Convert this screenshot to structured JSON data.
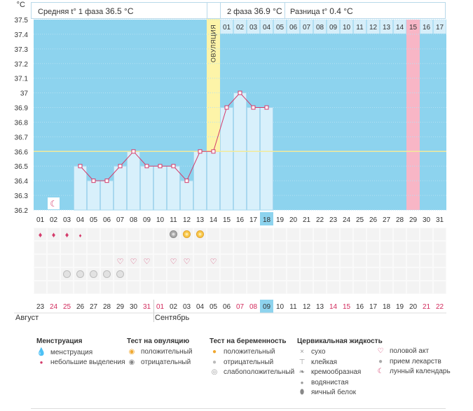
{
  "header": {
    "phase1_label": "Средняя t° 1 фаза",
    "phase1_value": "36.5 °C",
    "phase2_label": "2 фаза",
    "phase2_value": "36.9 °C",
    "diff_label": "Разница t°",
    "diff_value": "0.4 °C",
    "unit": "°C"
  },
  "chart_data": {
    "type": "line",
    "y_unit": "°C",
    "ylim": [
      36.2,
      37.5
    ],
    "y_ticks": [
      "36.2",
      "36.3",
      "36.4",
      "36.5",
      "36.6",
      "36.7",
      "36.8",
      "36.9",
      "37",
      "37.1",
      "37.2",
      "37.3",
      "37.4",
      "37.5"
    ],
    "cycle_days": [
      "01",
      "02",
      "03",
      "04",
      "05",
      "06",
      "07",
      "08",
      "09",
      "10",
      "11",
      "12",
      "13",
      "14",
      "15",
      "16",
      "17",
      "18",
      "19",
      "20",
      "21",
      "22",
      "23",
      "24",
      "25",
      "26",
      "27",
      "28",
      "29",
      "30",
      "31"
    ],
    "temperatures": [
      null,
      null,
      null,
      36.5,
      36.4,
      36.4,
      36.5,
      36.6,
      36.5,
      36.5,
      36.5,
      36.4,
      36.6,
      36.6,
      36.9,
      37.0,
      36.9,
      36.9,
      null,
      null,
      null,
      null,
      null,
      null,
      null,
      null,
      null,
      null,
      null,
      null,
      null
    ],
    "coverline": 36.6,
    "ovulation_day_index": 13,
    "ovulation_label": "ОВУЛЯЦИЯ",
    "luteal_day_labels": [
      "01",
      "02",
      "03",
      "04",
      "05",
      "06",
      "07",
      "08",
      "09",
      "10",
      "11",
      "12",
      "13",
      "14",
      "15",
      "16",
      "17"
    ],
    "expected_period_luteal_index": 14,
    "today_cycle_index": 17,
    "calendar_dates": [
      "23",
      "24",
      "25",
      "26",
      "27",
      "28",
      "29",
      "30",
      "31",
      "01",
      "02",
      "03",
      "04",
      "05",
      "06",
      "07",
      "08",
      "09",
      "10",
      "11",
      "12",
      "13",
      "14",
      "15",
      "16",
      "17",
      "18",
      "19",
      "20",
      "21",
      "22"
    ],
    "calendar_red": [
      false,
      true,
      true,
      false,
      false,
      false,
      false,
      false,
      true,
      true,
      false,
      false,
      false,
      false,
      false,
      true,
      true,
      false,
      false,
      false,
      false,
      false,
      true,
      true,
      false,
      false,
      false,
      false,
      false,
      true,
      true
    ],
    "today_calendar_index": 17,
    "month_labels": [
      {
        "name": "Август",
        "index": 0
      },
      {
        "name": "Сентябрь",
        "index": 9
      }
    ],
    "moon_day_index": 1,
    "menstruation": [
      "heavy",
      "heavy",
      "heavy",
      "light"
    ],
    "ovulation_tests": {
      "10": "negative",
      "11": "positive",
      "12": "positive"
    },
    "sex_days": [
      6,
      7,
      8,
      10,
      11,
      13
    ],
    "medication_days": [
      2,
      3,
      4,
      5,
      6
    ],
    "colors": {
      "plot_bg": "#8dd3ee",
      "bar_fill": "#d8f0fb",
      "bar_stroke": "#a8d8ef",
      "ovulation": "#fdf4a8",
      "expected_period": "#f8b6c6",
      "line": "#d43b6b",
      "coverline": "#f3ea9a",
      "red_date": "#d22a5c",
      "today": "#8dd3ee"
    }
  },
  "legend": {
    "menstruation": {
      "title": "Менструация",
      "items": [
        {
          "icon": "drop-large-icon",
          "label": "менструация"
        },
        {
          "icon": "drop-small-icon",
          "label": "небольшие выделения"
        }
      ]
    },
    "ovulation_test": {
      "title": "Тест на овуляцию",
      "items": [
        {
          "icon": "positive-test-icon",
          "label": "положительный"
        },
        {
          "icon": "negative-test-icon",
          "label": "отрицательный"
        }
      ]
    },
    "pregnancy_test": {
      "title": "Тест на беременность",
      "items": [
        {
          "icon": "pregnancy-positive-icon",
          "label": "положительный"
        },
        {
          "icon": "pregnancy-negative-icon",
          "label": "отрицательный"
        },
        {
          "icon": "pregnancy-weak-icon",
          "label": "слабоположительный"
        }
      ]
    },
    "cervical": {
      "title": "Цервикальная жидкость",
      "items": [
        {
          "icon": "dry-icon",
          "label": "сухо"
        },
        {
          "icon": "sticky-icon",
          "label": "клейкая"
        },
        {
          "icon": "creamy-icon",
          "label": "кремообразная"
        },
        {
          "icon": "watery-icon",
          "label": "водянистая"
        },
        {
          "icon": "egg-white-icon",
          "label": "яичный белок"
        }
      ]
    },
    "other": {
      "items": [
        {
          "icon": "heart-icon",
          "label": "половой акт"
        },
        {
          "icon": "pill-icon",
          "label": "прием лекарств"
        },
        {
          "icon": "moon-icon",
          "label": "лунный календарь"
        }
      ]
    }
  }
}
